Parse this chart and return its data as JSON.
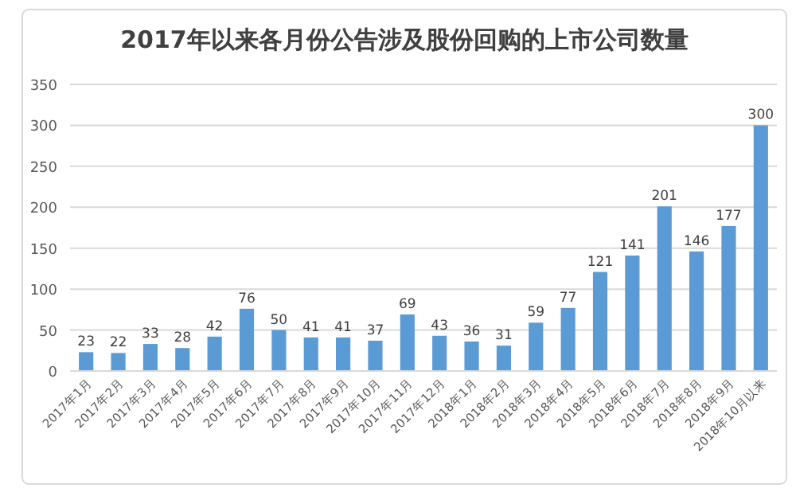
{
  "chart_data": {
    "type": "bar",
    "title": "2017年以来各月份公告涉及股份回购的上市公司数量",
    "categories": [
      "2017年1月",
      "2017年2月",
      "2017年3月",
      "2017年4月",
      "2017年5月",
      "2017年6月",
      "2017年7月",
      "2017年8月",
      "2017年9月",
      "2017年10月",
      "2017年11月",
      "2017年12月",
      "2018年1月",
      "2018年2月",
      "2018年3月",
      "2018年4月",
      "2018年5月",
      "2018年6月",
      "2018年7月",
      "2018年8月",
      "2018年9月",
      "2018年10月以来"
    ],
    "values": [
      23,
      22,
      33,
      28,
      42,
      76,
      50,
      41,
      41,
      37,
      69,
      43,
      36,
      31,
      59,
      77,
      121,
      141,
      201,
      146,
      177,
      300
    ],
    "color": "#5b9bd5",
    "ylim": [
      0,
      350
    ],
    "yticks": [
      0,
      50,
      100,
      150,
      200,
      250,
      300,
      350
    ],
    "grid": "y",
    "data_labels": true
  }
}
